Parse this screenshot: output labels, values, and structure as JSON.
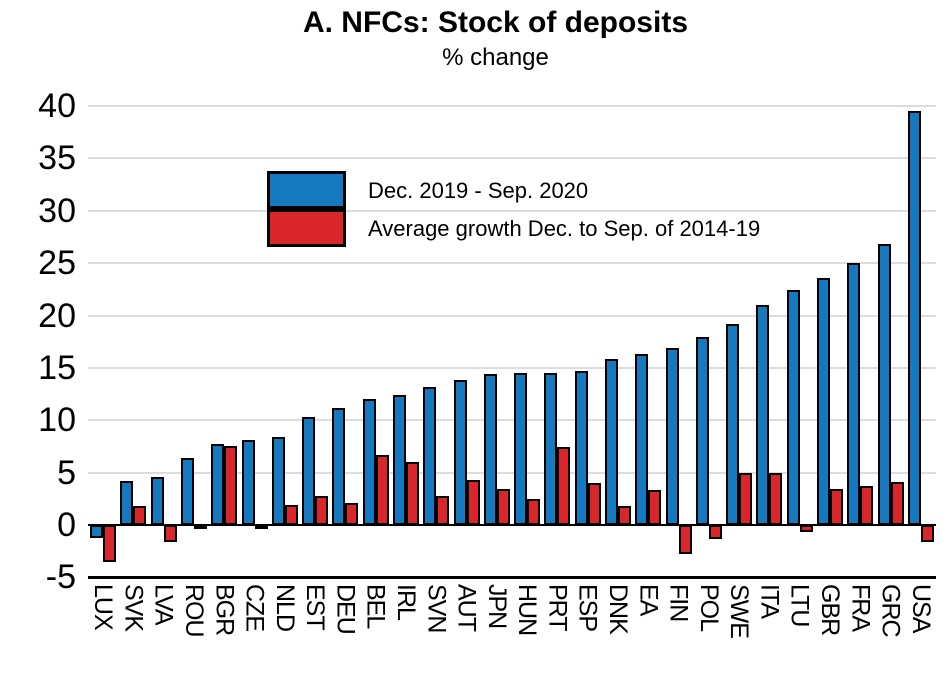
{
  "header": {
    "title": "A. NFCs: Stock of deposits",
    "subtitle": "% change"
  },
  "legend": {
    "items": [
      {
        "label": "Dec. 2019 - Sep. 2020",
        "color": "#1579c0"
      },
      {
        "label": "Average growth Dec. to Sep. of 2014-19",
        "color": "#d8262b"
      }
    ],
    "position": "upper-left-inside"
  },
  "chart_data": {
    "type": "bar",
    "title": "A. NFCs: Stock of deposits",
    "subtitle": "% change",
    "categories": [
      "LUX",
      "SVK",
      "LVA",
      "ROU",
      "BGR",
      "CZE",
      "NLD",
      "EST",
      "DEU",
      "BEL",
      "IRL",
      "SVN",
      "AUT",
      "JPN",
      "HUN",
      "PRT",
      "ESP",
      "DNK",
      "EA",
      "FIN",
      "POL",
      "SWE",
      "ITA",
      "LTU",
      "GBR",
      "FRA",
      "GRC",
      "USA"
    ],
    "series": [
      {
        "name": "Dec. 2019 - Sep. 2020",
        "color": "#1579c0",
        "values": [
          -1.2,
          4.2,
          4.6,
          6.4,
          7.7,
          8.1,
          8.4,
          10.3,
          11.2,
          12.0,
          12.4,
          13.2,
          13.8,
          14.4,
          14.5,
          14.5,
          14.7,
          15.8,
          16.3,
          16.9,
          17.9,
          19.2,
          21.0,
          22.4,
          23.6,
          25.0,
          26.8,
          39.5
        ]
      },
      {
        "name": "Average growth Dec. to Sep. of 2014-19",
        "color": "#d8262b",
        "values": [
          -3.5,
          1.8,
          -1.6,
          -0.3,
          7.5,
          -0.1,
          1.9,
          2.8,
          2.1,
          6.7,
          6.0,
          2.8,
          4.3,
          3.4,
          2.5,
          7.4,
          4.0,
          1.8,
          3.3,
          -2.8,
          -1.3,
          5.0,
          5.0,
          -0.7,
          3.4,
          3.7,
          4.1,
          -1.6
        ]
      }
    ],
    "xlabel": "",
    "ylabel": "",
    "ylim": [
      -5,
      40
    ],
    "yticks": [
      -5,
      0,
      5,
      10,
      15,
      20,
      25,
      30,
      35,
      40
    ],
    "grid": "horizontal",
    "gridline_color": "#dcdcdc",
    "bar_outline_color": "#000000"
  }
}
